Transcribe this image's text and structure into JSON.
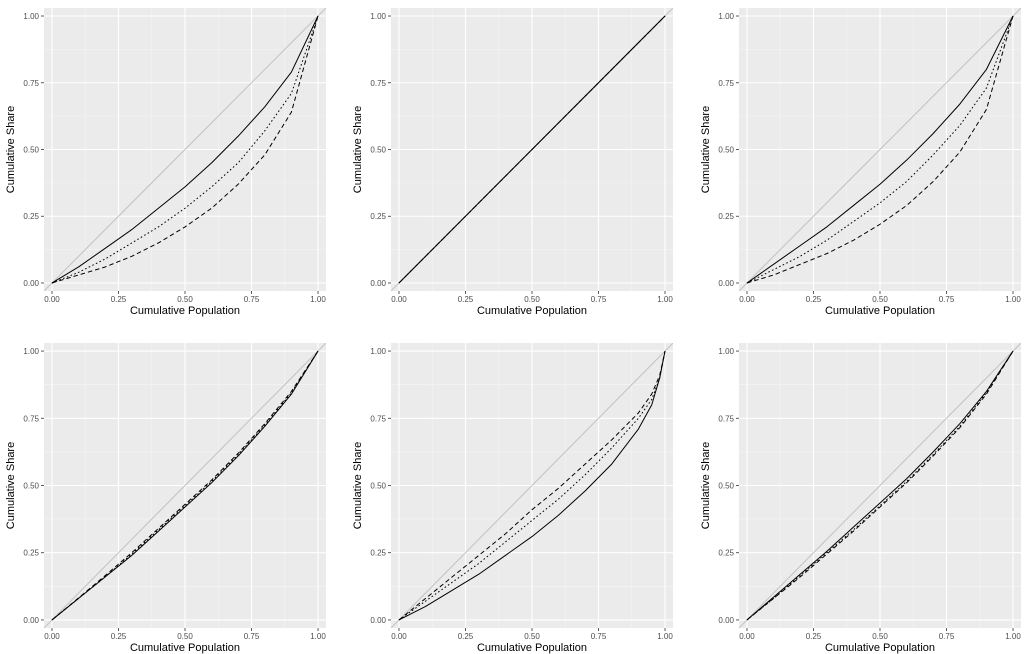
{
  "chart_data": [
    {
      "type": "line",
      "xlabel": "Cumulative Population",
      "ylabel": "Cumulative Share",
      "xlim": [
        -0.03,
        1.03
      ],
      "ylim": [
        -0.03,
        1.03
      ],
      "xticks": [
        "0.00",
        "0.25",
        "0.50",
        "0.75",
        "1.00"
      ],
      "yticks": [
        "0.00",
        "0.25",
        "0.50",
        "0.75",
        "1.00"
      ],
      "reference_line": {
        "name": "equality",
        "color": "#c4c4c4",
        "x": [
          -0.03,
          1.03
        ],
        "y": [
          -0.03,
          1.03
        ]
      },
      "series": [
        {
          "name": "solid",
          "dash": "solid",
          "color": "#000000",
          "x": [
            0,
            0.1,
            0.2,
            0.3,
            0.4,
            0.5,
            0.6,
            0.7,
            0.8,
            0.9,
            1.0
          ],
          "y": [
            0,
            0.06,
            0.13,
            0.2,
            0.28,
            0.36,
            0.45,
            0.55,
            0.66,
            0.79,
            1.0
          ]
        },
        {
          "name": "dotted",
          "dash": "dotted",
          "color": "#000000",
          "x": [
            0,
            0.1,
            0.2,
            0.3,
            0.4,
            0.5,
            0.6,
            0.7,
            0.8,
            0.9,
            1.0
          ],
          "y": [
            0,
            0.04,
            0.09,
            0.15,
            0.21,
            0.28,
            0.36,
            0.45,
            0.57,
            0.71,
            1.0
          ]
        },
        {
          "name": "dashed",
          "dash": "dashed",
          "color": "#000000",
          "x": [
            0,
            0.1,
            0.2,
            0.3,
            0.4,
            0.5,
            0.6,
            0.7,
            0.8,
            0.9,
            1.0
          ],
          "y": [
            0,
            0.03,
            0.06,
            0.1,
            0.15,
            0.21,
            0.28,
            0.37,
            0.48,
            0.64,
            1.0
          ]
        }
      ]
    },
    {
      "type": "line",
      "xlabel": "Cumulative Population",
      "ylabel": "Cumulative Share",
      "xlim": [
        -0.03,
        1.03
      ],
      "ylim": [
        -0.03,
        1.03
      ],
      "xticks": [
        "0.00",
        "0.25",
        "0.50",
        "0.75",
        "1.00"
      ],
      "yticks": [
        "0.00",
        "0.25",
        "0.50",
        "0.75",
        "1.00"
      ],
      "reference_line": {
        "name": "equality",
        "color": "#c4c4c4",
        "x": [
          -0.03,
          1.03
        ],
        "y": [
          -0.03,
          1.03
        ]
      },
      "series": [
        {
          "name": "solid",
          "dash": "solid",
          "color": "#000000",
          "x": [
            0,
            0.5,
            1.0
          ],
          "y": [
            0,
            0.5,
            1.0
          ]
        },
        {
          "name": "dotted",
          "dash": "dotted",
          "color": "#000000",
          "x": [
            0,
            0.5,
            1.0
          ],
          "y": [
            0,
            0.5,
            1.0
          ]
        },
        {
          "name": "dashed",
          "dash": "dashed",
          "color": "#000000",
          "x": [
            0,
            0.5,
            1.0
          ],
          "y": [
            0,
            0.5,
            1.0
          ]
        }
      ]
    },
    {
      "type": "line",
      "xlabel": "Cumulative Population",
      "ylabel": "Cumulative Share",
      "xlim": [
        -0.03,
        1.03
      ],
      "ylim": [
        -0.03,
        1.03
      ],
      "xticks": [
        "0.00",
        "0.25",
        "0.50",
        "0.75",
        "1.00"
      ],
      "yticks": [
        "0.00",
        "0.25",
        "0.50",
        "0.75",
        "1.00"
      ],
      "reference_line": {
        "name": "equality",
        "color": "#c4c4c4",
        "x": [
          -0.03,
          1.03
        ],
        "y": [
          -0.03,
          1.03
        ]
      },
      "series": [
        {
          "name": "solid",
          "dash": "solid",
          "color": "#000000",
          "x": [
            0,
            0.1,
            0.2,
            0.3,
            0.4,
            0.5,
            0.6,
            0.7,
            0.8,
            0.9,
            1.0
          ],
          "y": [
            0,
            0.07,
            0.14,
            0.21,
            0.29,
            0.37,
            0.46,
            0.56,
            0.67,
            0.8,
            1.0
          ]
        },
        {
          "name": "dotted",
          "dash": "dotted",
          "color": "#000000",
          "x": [
            0,
            0.1,
            0.2,
            0.3,
            0.4,
            0.5,
            0.6,
            0.7,
            0.8,
            0.9,
            1.0
          ],
          "y": [
            0,
            0.05,
            0.1,
            0.16,
            0.23,
            0.3,
            0.38,
            0.48,
            0.59,
            0.73,
            1.0
          ]
        },
        {
          "name": "dashed",
          "dash": "dashed",
          "color": "#000000",
          "x": [
            0,
            0.1,
            0.2,
            0.3,
            0.4,
            0.5,
            0.6,
            0.7,
            0.8,
            0.9,
            1.0
          ],
          "y": [
            0,
            0.03,
            0.07,
            0.11,
            0.16,
            0.22,
            0.29,
            0.38,
            0.49,
            0.65,
            1.0
          ]
        }
      ]
    },
    {
      "type": "line",
      "xlabel": "Cumulative Population",
      "ylabel": "Cumulative Share",
      "xlim": [
        -0.03,
        1.03
      ],
      "ylim": [
        -0.03,
        1.03
      ],
      "xticks": [
        "0.00",
        "0.25",
        "0.50",
        "0.75",
        "1.00"
      ],
      "yticks": [
        "0.00",
        "0.25",
        "0.50",
        "0.75",
        "1.00"
      ],
      "reference_line": {
        "name": "equality",
        "color": "#c4c4c4",
        "x": [
          -0.03,
          1.03
        ],
        "y": [
          -0.03,
          1.03
        ]
      },
      "series": [
        {
          "name": "solid",
          "dash": "solid",
          "color": "#000000",
          "x": [
            0,
            0.1,
            0.2,
            0.3,
            0.4,
            0.5,
            0.6,
            0.7,
            0.8,
            0.9,
            1.0
          ],
          "y": [
            0,
            0.08,
            0.16,
            0.24,
            0.33,
            0.42,
            0.51,
            0.61,
            0.72,
            0.84,
            1.0
          ]
        },
        {
          "name": "dotted",
          "dash": "dotted",
          "color": "#000000",
          "x": [
            0,
            0.1,
            0.2,
            0.3,
            0.4,
            0.5,
            0.6,
            0.7,
            0.8,
            0.9,
            1.0
          ],
          "y": [
            0,
            0.08,
            0.16,
            0.245,
            0.335,
            0.425,
            0.515,
            0.615,
            0.725,
            0.845,
            1.0
          ]
        },
        {
          "name": "dashed",
          "dash": "dashed",
          "color": "#000000",
          "x": [
            0,
            0.1,
            0.2,
            0.3,
            0.4,
            0.5,
            0.6,
            0.7,
            0.8,
            0.9,
            1.0
          ],
          "y": [
            0,
            0.082,
            0.165,
            0.25,
            0.34,
            0.43,
            0.52,
            0.62,
            0.73,
            0.85,
            1.0
          ]
        }
      ]
    },
    {
      "type": "line",
      "xlabel": "Cumulative Population",
      "ylabel": "Cumulative Share",
      "xlim": [
        -0.03,
        1.03
      ],
      "ylim": [
        -0.03,
        1.03
      ],
      "xticks": [
        "0.00",
        "0.25",
        "0.50",
        "0.75",
        "1.00"
      ],
      "yticks": [
        "0.00",
        "0.25",
        "0.50",
        "0.75",
        "1.00"
      ],
      "reference_line": {
        "name": "equality",
        "color": "#c4c4c4",
        "x": [
          -0.03,
          1.03
        ],
        "y": [
          -0.03,
          1.03
        ]
      },
      "series": [
        {
          "name": "solid",
          "dash": "solid",
          "color": "#000000",
          "x": [
            0,
            0.1,
            0.2,
            0.3,
            0.4,
            0.5,
            0.6,
            0.7,
            0.8,
            0.9,
            0.95,
            0.98,
            1.0
          ],
          "y": [
            0,
            0.05,
            0.11,
            0.17,
            0.24,
            0.31,
            0.39,
            0.48,
            0.58,
            0.71,
            0.8,
            0.9,
            1.0
          ]
        },
        {
          "name": "dotted",
          "dash": "dotted",
          "color": "#000000",
          "x": [
            0,
            0.1,
            0.2,
            0.3,
            0.4,
            0.5,
            0.6,
            0.7,
            0.8,
            0.9,
            0.95,
            0.98,
            1.0
          ],
          "y": [
            0,
            0.07,
            0.14,
            0.21,
            0.29,
            0.37,
            0.45,
            0.54,
            0.64,
            0.75,
            0.82,
            0.9,
            1.0
          ]
        },
        {
          "name": "dashed",
          "dash": "dashed",
          "color": "#000000",
          "x": [
            0,
            0.1,
            0.2,
            0.3,
            0.4,
            0.5,
            0.6,
            0.7,
            0.8,
            0.9,
            0.95,
            0.98,
            1.0
          ],
          "y": [
            0,
            0.08,
            0.16,
            0.24,
            0.32,
            0.41,
            0.49,
            0.58,
            0.67,
            0.77,
            0.84,
            0.91,
            1.0
          ]
        }
      ]
    },
    {
      "type": "line",
      "xlabel": "Cumulative Population",
      "ylabel": "Cumulative Share",
      "xlim": [
        -0.03,
        1.03
      ],
      "ylim": [
        -0.03,
        1.03
      ],
      "xticks": [
        "0.00",
        "0.25",
        "0.50",
        "0.75",
        "1.00"
      ],
      "yticks": [
        "0.00",
        "0.25",
        "0.50",
        "0.75",
        "1.00"
      ],
      "reference_line": {
        "name": "equality",
        "color": "#c4c4c4",
        "x": [
          -0.03,
          1.03
        ],
        "y": [
          -0.03,
          1.03
        ]
      },
      "series": [
        {
          "name": "solid",
          "dash": "solid",
          "color": "#000000",
          "x": [
            0,
            0.1,
            0.2,
            0.3,
            0.4,
            0.5,
            0.6,
            0.7,
            0.8,
            0.9,
            1.0
          ],
          "y": [
            0,
            0.085,
            0.17,
            0.255,
            0.345,
            0.435,
            0.525,
            0.625,
            0.73,
            0.85,
            1.0
          ]
        },
        {
          "name": "dotted",
          "dash": "dotted",
          "color": "#000000",
          "x": [
            0,
            0.1,
            0.2,
            0.3,
            0.4,
            0.5,
            0.6,
            0.7,
            0.8,
            0.9,
            1.0
          ],
          "y": [
            0,
            0.08,
            0.165,
            0.25,
            0.335,
            0.425,
            0.515,
            0.615,
            0.72,
            0.845,
            1.0
          ]
        },
        {
          "name": "dashed",
          "dash": "dashed",
          "color": "#000000",
          "x": [
            0,
            0.1,
            0.2,
            0.3,
            0.4,
            0.5,
            0.6,
            0.7,
            0.8,
            0.9,
            1.0
          ],
          "y": [
            0,
            0.08,
            0.16,
            0.245,
            0.33,
            0.42,
            0.51,
            0.61,
            0.715,
            0.84,
            1.0
          ]
        }
      ]
    }
  ]
}
